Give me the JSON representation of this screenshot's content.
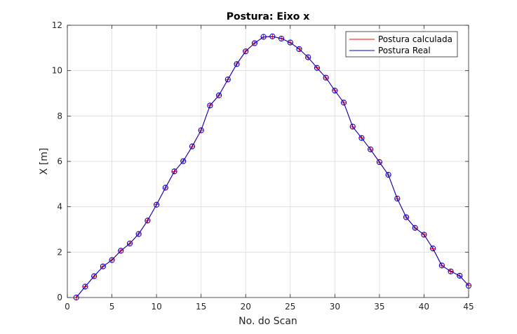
{
  "chart_data": {
    "type": "line",
    "title": "Postura: Eixo x",
    "xlabel": "No. do Scan",
    "ylabel": "X [m]",
    "xlim": [
      0,
      45
    ],
    "ylim": [
      0,
      12
    ],
    "xticks": [
      0,
      5,
      10,
      15,
      20,
      25,
      30,
      35,
      40,
      45
    ],
    "yticks": [
      0,
      2,
      4,
      6,
      8,
      10,
      12
    ],
    "grid": true,
    "legend_position": "top-right",
    "x": [
      1,
      2,
      3,
      4,
      5,
      6,
      7,
      8,
      9,
      10,
      11,
      12,
      13,
      14,
      15,
      16,
      17,
      18,
      19,
      20,
      21,
      22,
      23,
      24,
      25,
      26,
      27,
      28,
      29,
      30,
      31,
      32,
      33,
      34,
      35,
      36,
      37,
      38,
      39,
      40,
      41,
      42,
      43,
      44,
      45
    ],
    "series": [
      {
        "name": "Postura calculada",
        "color": "#ff0000",
        "marker": "plus",
        "values": [
          0.0,
          0.48,
          0.93,
          1.37,
          1.66,
          2.07,
          2.37,
          2.81,
          3.4,
          4.1,
          4.83,
          5.55,
          6.02,
          6.65,
          7.38,
          8.47,
          8.92,
          9.6,
          10.3,
          10.86,
          11.22,
          11.48,
          11.5,
          11.42,
          11.23,
          10.96,
          10.58,
          10.13,
          9.68,
          9.13,
          8.58,
          7.52,
          7.04,
          6.52,
          5.96,
          5.4,
          4.35,
          3.55,
          3.06,
          2.78,
          2.15,
          1.4,
          1.16,
          0.95,
          0.53
        ]
      },
      {
        "name": "Postura Real",
        "color": "#0000cc",
        "marker": "circle",
        "values": [
          0.0,
          0.48,
          0.94,
          1.37,
          1.65,
          2.06,
          2.38,
          2.8,
          3.39,
          4.09,
          4.84,
          5.56,
          6.01,
          6.66,
          7.37,
          8.46,
          8.91,
          9.61,
          10.29,
          10.85,
          11.21,
          11.49,
          11.51,
          11.41,
          11.24,
          10.95,
          10.59,
          10.12,
          9.69,
          9.12,
          8.59,
          7.53,
          7.03,
          6.53,
          5.97,
          5.41,
          4.36,
          3.54,
          3.07,
          2.77,
          2.16,
          1.41,
          1.15,
          0.96,
          0.52
        ]
      }
    ]
  }
}
